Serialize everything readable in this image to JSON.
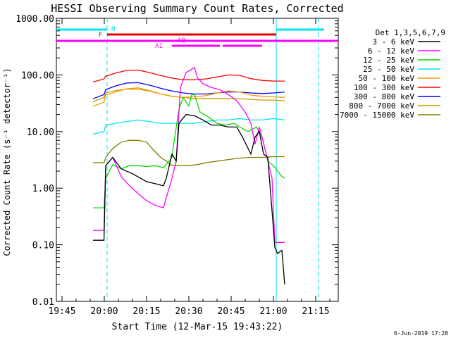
{
  "chart_data": {
    "type": "line",
    "title": "HESSI Observing Summary Count Rates, Corrected",
    "xlabel": "Start Time (12-Mar-15 19:43:22)",
    "ylabel": "Corrected Count Rate (s⁻¹ detector⁻¹)",
    "yscale": "log",
    "xlim": [
      "19:43",
      "21:23"
    ],
    "ylim": [
      0.01,
      1000
    ],
    "x_ticks": [
      "19:45",
      "20:00",
      "20:15",
      "20:30",
      "20:45",
      "21:00",
      "21:15"
    ],
    "y_ticks": [
      "1000.00",
      "100.00",
      "10.00",
      "1.00",
      "0.10",
      "0.01"
    ],
    "legend_title": "Det 1,3,5,6,7,9",
    "legend_position": "right",
    "footer_date": "6-Jun-2019 17:28",
    "flag_labels": [
      "N",
      "F",
      "AQ",
      "A1"
    ],
    "series": [
      {
        "name": "3 - 6 keV",
        "color": "#000000",
        "x": [
          "19:56",
          "19:59.9",
          "20:00.5",
          "20:03",
          "20:06",
          "20:10",
          "20:15",
          "20:18",
          "20:21",
          "20:22",
          "20:24",
          "20:25.5",
          "20:26.5",
          "20:29",
          "20:32",
          "20:35",
          "20:38",
          "20:41",
          "20:44",
          "20:47",
          "20:49",
          "20:52",
          "20:53.5",
          "20:55",
          "20:56.5",
          "20:58",
          "20:59.5",
          "21:00.5",
          "21:01.5",
          "21:03",
          "21:04"
        ],
        "values": [
          0.12,
          0.12,
          2.5,
          3.5,
          2.2,
          1.8,
          1.3,
          1.2,
          1.1,
          1.5,
          4,
          3,
          14,
          20,
          19,
          16,
          13,
          13,
          12,
          12,
          8,
          4,
          8,
          10,
          4,
          3.5,
          0.4,
          0.09,
          0.07,
          0.08,
          0.02
        ]
      },
      {
        "name": "6 - 12 keV",
        "color": "#ff00ff",
        "x": [
          "19:56",
          "19:59.9",
          "20:00.5",
          "20:03",
          "20:06",
          "20:09",
          "20:12",
          "20:15",
          "20:18",
          "20:21",
          "20:24",
          "20:25.5",
          "20:27",
          "20:29",
          "20:32",
          "20:33",
          "20:35",
          "20:38",
          "20:41",
          "20:44",
          "20:47",
          "20:50",
          "20:52",
          "20:53.5",
          "20:55",
          "20:57",
          "20:59.5",
          "21:00.5",
          "21:04"
        ],
        "values": [
          0.18,
          0.18,
          2.5,
          3.5,
          1.6,
          1.1,
          0.8,
          0.6,
          0.5,
          0.45,
          1.5,
          3,
          60,
          110,
          135,
          90,
          70,
          60,
          55,
          45,
          35,
          22,
          14,
          6,
          12,
          5,
          1.5,
          0.11,
          0.11
        ]
      },
      {
        "name": "12 - 25 keV",
        "color": "#00dd00",
        "x": [
          "19:56",
          "19:59.9",
          "20:00.5",
          "20:03",
          "20:06",
          "20:09",
          "20:12",
          "20:15",
          "20:18",
          "20:21",
          "20:23",
          "20:24",
          "20:25",
          "20:26.5",
          "20:28",
          "20:30",
          "20:31",
          "20:32",
          "20:34",
          "20:37",
          "20:40",
          "20:43",
          "20:46",
          "20:48",
          "20:51",
          "20:54",
          "20:56",
          "20:58",
          "21:00",
          "21:03",
          "21:04"
        ],
        "values": [
          0.45,
          0.45,
          1.5,
          2.6,
          2.2,
          2.5,
          2.5,
          2.4,
          2.5,
          2.3,
          3,
          3.5,
          8,
          25,
          40,
          28,
          45,
          45,
          22,
          18,
          14,
          13,
          14,
          12,
          10,
          12,
          8,
          3,
          2.5,
          1.6,
          1.5
        ]
      },
      {
        "name": "25 - 50 keV",
        "color": "#00e5ee",
        "x": [
          "19:56",
          "19:59.9",
          "20:00.5",
          "20:04",
          "20:08",
          "20:12",
          "20:16",
          "20:20",
          "20:24",
          "20:28",
          "20:32",
          "20:36",
          "20:40",
          "20:44",
          "20:48",
          "20:52",
          "20:56",
          "21:00",
          "21:04"
        ],
        "values": [
          9,
          10,
          13,
          14,
          15,
          16,
          15,
          14,
          14,
          14,
          14,
          15,
          16,
          16,
          17,
          16,
          16,
          17,
          16
        ]
      },
      {
        "name": "50 - 100 keV",
        "color": "#ff9900",
        "x": [
          "19:56",
          "19:59.9",
          "20:00.5",
          "20:04",
          "20:08",
          "20:12",
          "20:16",
          "20:20",
          "20:24",
          "20:28",
          "20:32",
          "20:36",
          "20:40",
          "20:44",
          "20:48",
          "20:52",
          "20:56",
          "21:00",
          "21:04"
        ],
        "values": [
          28,
          33,
          44,
          50,
          57,
          59,
          53,
          46,
          42,
          40,
          41,
          43,
          48,
          52,
          50,
          44,
          42,
          41,
          40
        ]
      },
      {
        "name": "100 - 300 keV",
        "color": "#ff0000",
        "x": [
          "19:56",
          "19:59.9",
          "20:00.5",
          "20:04",
          "20:08",
          "20:12",
          "20:16",
          "20:20",
          "20:24",
          "20:28",
          "20:32",
          "20:36",
          "20:40",
          "20:44",
          "20:48",
          "20:52",
          "20:56",
          "21:00",
          "21:04"
        ],
        "values": [
          75,
          85,
          95,
          108,
          120,
          122,
          110,
          98,
          88,
          82,
          82,
          85,
          92,
          100,
          98,
          86,
          80,
          78,
          78
        ]
      },
      {
        "name": "300 - 800 keV",
        "color": "#0000ff",
        "x": [
          "19:56",
          "19:59.9",
          "20:00.5",
          "20:04",
          "20:08",
          "20:12",
          "20:16",
          "20:20",
          "20:24",
          "20:28",
          "20:32",
          "20:36",
          "20:40",
          "20:44",
          "20:48",
          "20:52",
          "20:56",
          "21:00",
          "21:04"
        ],
        "values": [
          38,
          45,
          55,
          64,
          72,
          73,
          66,
          58,
          52,
          48,
          46,
          46,
          48,
          50,
          50,
          48,
          47,
          48,
          50
        ]
      },
      {
        "name": "800 - 7000 keV",
        "color": "#cc9900",
        "x": [
          "19:56",
          "19:59.9",
          "20:00.5",
          "20:04",
          "20:08",
          "20:12",
          "20:16",
          "20:20",
          "20:24",
          "20:28",
          "20:32",
          "20:36",
          "20:40",
          "20:44",
          "20:48",
          "20:52",
          "20:56",
          "21:00",
          "21:04"
        ],
        "values": [
          34,
          40,
          48,
          53,
          56,
          56,
          52,
          46,
          42,
          40,
          38,
          38,
          38,
          38,
          38,
          37,
          36,
          36,
          35
        ]
      },
      {
        "name": "7000 - 15000 keV",
        "color": "#808000",
        "x": [
          "19:56",
          "19:59.9",
          "20:00.5",
          "20:03",
          "20:06",
          "20:09",
          "20:12",
          "20:15",
          "20:17",
          "20:20",
          "20:22",
          "20:24",
          "20:27",
          "20:30",
          "20:33",
          "20:36",
          "20:40",
          "20:44",
          "20:48",
          "20:52",
          "20:56",
          "21:00",
          "21:04"
        ],
        "values": [
          2.8,
          2.8,
          3.5,
          5,
          6.5,
          7,
          7,
          6.5,
          5,
          3.5,
          3,
          2.5,
          2.5,
          2.5,
          2.6,
          2.8,
          3,
          3.2,
          3.4,
          3.5,
          3.5,
          3.6,
          3.6
        ]
      }
    ]
  }
}
